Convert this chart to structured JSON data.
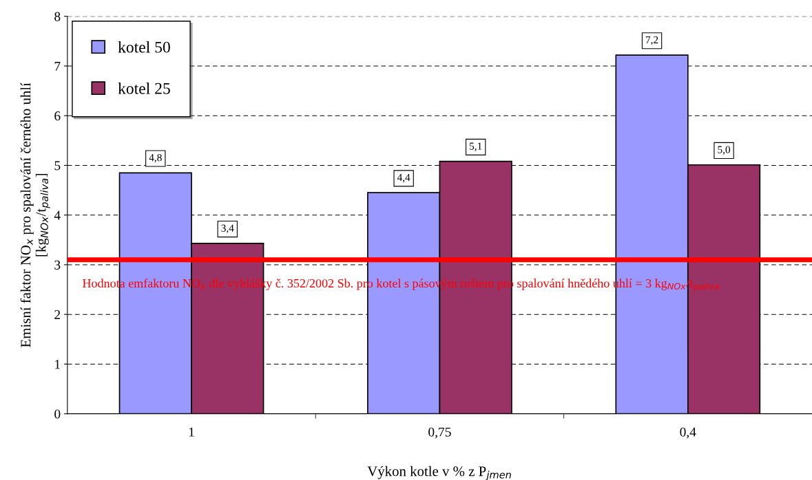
{
  "chart_data": {
    "type": "bar",
    "xlabel": "Výkon kotle v % z P$_{jmen}$",
    "ylabel": "Emisní faktor NO$_{x}$ pro spalování černého uhlí\n[kg$_{NOx}$/t$_{paliva}$]",
    "categories": [
      "1",
      "0,75",
      "0,4"
    ],
    "series": [
      {
        "name": "kotel 50",
        "color": "#9999ff",
        "values": [
          4.85,
          4.45,
          7.22
        ],
        "value_labels": [
          "4,8",
          "4,4",
          "7,2"
        ]
      },
      {
        "name": "kotel 25",
        "color": "#993366",
        "values": [
          3.43,
          5.08,
          5.01
        ],
        "value_labels": [
          "3,4",
          "5,1",
          "5,0"
        ]
      }
    ],
    "ylim": [
      0,
      8
    ],
    "yticks": [
      0,
      1,
      2,
      3,
      4,
      5,
      6,
      7,
      8
    ],
    "grid": "y",
    "legend": "top left",
    "ref_lines": [
      {
        "axis": "y",
        "value": 3.1,
        "color": "#ff0000",
        "line_style": "solid",
        "label": "Hodnota emfaktoru NO$_{x}$ dle vyhlášky č. 352/2002 Sb. pro kotel s pásovým roštem pro spalování hnědého uhlí = 3 kg$_{NOx}$/t$_{paliva}$"
      }
    ]
  }
}
